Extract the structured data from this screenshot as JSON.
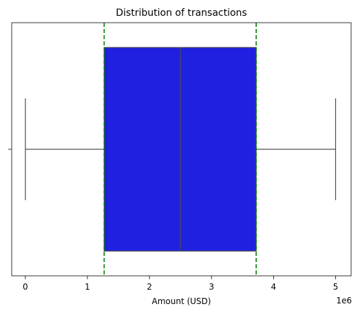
{
  "chart_data": {
    "type": "boxplot",
    "title": "Distribution of transactions",
    "xlabel": "Amount (USD)",
    "ylabel": "",
    "x_offset_label": "1e6",
    "xlim": [
      -0.22,
      5.25
    ],
    "x_ticks": [
      0,
      1,
      2,
      3,
      4,
      5
    ],
    "x_tick_labels": [
      "0",
      "1",
      "2",
      "3",
      "4",
      "5"
    ],
    "box": {
      "min": 0.0,
      "q1": 1.27,
      "median": 2.5,
      "q3": 3.72,
      "max": 5.0
    },
    "reference_lines": [
      1.27,
      3.72
    ],
    "grid": false,
    "legend": "none",
    "colors": {
      "box_fill": "#2020e0",
      "whisker": "#4d4d4d",
      "reference_line": "#008000"
    }
  }
}
